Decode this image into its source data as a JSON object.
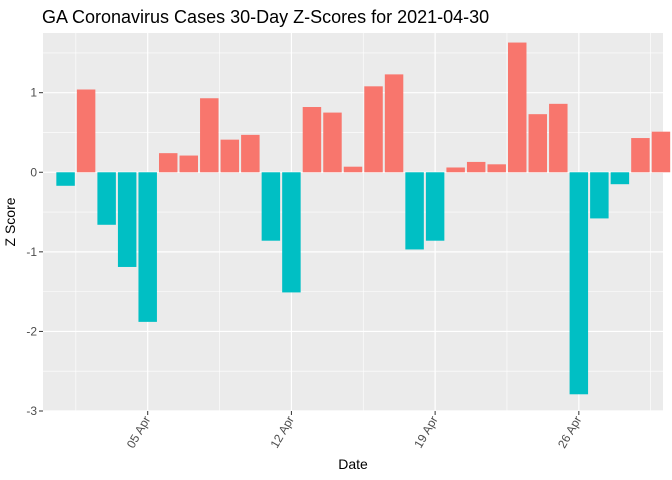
{
  "chart_data": {
    "type": "bar",
    "title": "GA Coronavirus Cases 30-Day Z-Scores for 2021-04-30",
    "xlabel": "Date",
    "ylabel": "Z Score",
    "ylim": [
      -3,
      1.75
    ],
    "yticks": [
      -3,
      -2,
      -1,
      0,
      1
    ],
    "xticks": [
      {
        "label": "05 Apr",
        "date": "2021-04-05"
      },
      {
        "label": "12 Apr",
        "date": "2021-04-12"
      },
      {
        "label": "19 Apr",
        "date": "2021-04-19"
      },
      {
        "label": "26 Apr",
        "date": "2021-04-26"
      }
    ],
    "categories": [
      "2021-04-01",
      "2021-04-02",
      "2021-04-03",
      "2021-04-04",
      "2021-04-05",
      "2021-04-06",
      "2021-04-07",
      "2021-04-08",
      "2021-04-09",
      "2021-04-10",
      "2021-04-11",
      "2021-04-12",
      "2021-04-13",
      "2021-04-14",
      "2021-04-15",
      "2021-04-16",
      "2021-04-17",
      "2021-04-18",
      "2021-04-19",
      "2021-04-20",
      "2021-04-21",
      "2021-04-22",
      "2021-04-23",
      "2021-04-24",
      "2021-04-25",
      "2021-04-26",
      "2021-04-27",
      "2021-04-28",
      "2021-04-29",
      "2021-04-30"
    ],
    "values": [
      -0.17,
      1.04,
      -0.66,
      -1.19,
      -1.88,
      0.24,
      0.21,
      0.93,
      0.41,
      0.47,
      -0.86,
      -1.51,
      0.82,
      0.75,
      0.07,
      1.08,
      1.23,
      -0.97,
      -0.86,
      0.06,
      0.13,
      0.1,
      1.63,
      0.73,
      0.86,
      -2.79,
      -0.58,
      -0.15,
      0.43,
      0.51
    ],
    "colors": {
      "positive": "#F8766D",
      "negative": "#00BFC4",
      "panel": "#EBEBEB",
      "grid": "#FFFFFF"
    },
    "grid": true,
    "legend": "none"
  }
}
